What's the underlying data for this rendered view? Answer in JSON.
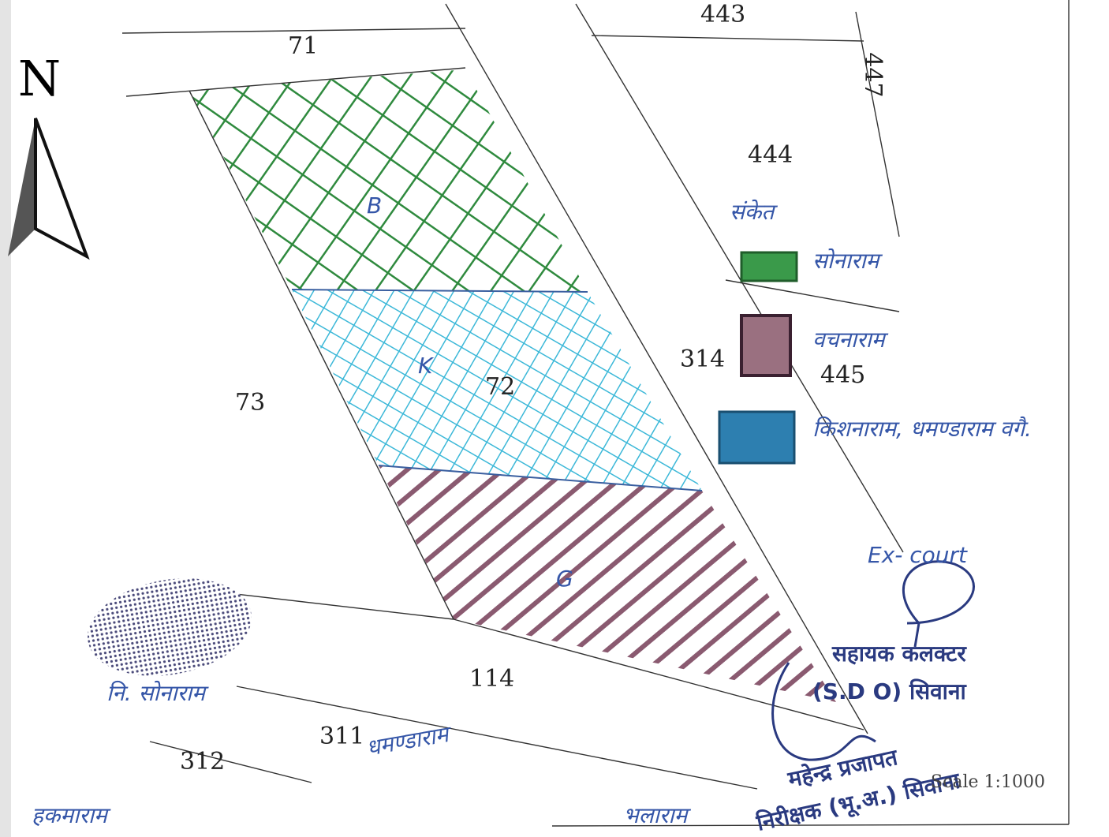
{
  "north": "N",
  "parcels": [
    "71",
    "443",
    "447",
    "444",
    "73",
    "72",
    "314",
    "445",
    "114",
    "311",
    "312"
  ],
  "regions": [
    "B",
    "K",
    "G"
  ],
  "legend": {
    "title": "संकेत",
    "items": [
      "सोनाराम",
      "वचनाराम",
      "किशनाराम, धमण्डाराम वगै."
    ]
  },
  "owners": [
    "नि. सोनाराम",
    "धमण्डाराम",
    "हकमाराम",
    "भलाराम"
  ],
  "stamp": {
    "note": "Ex- court",
    "line1": "सहायक कलक्टर",
    "line2": "(S.D O) सिवाना"
  },
  "inspector": {
    "name": "महेन्द्र प्रजापत",
    "title": "निरीक्षक (भू.अ.) सिवाना"
  },
  "scale": "Scale 1:1000"
}
